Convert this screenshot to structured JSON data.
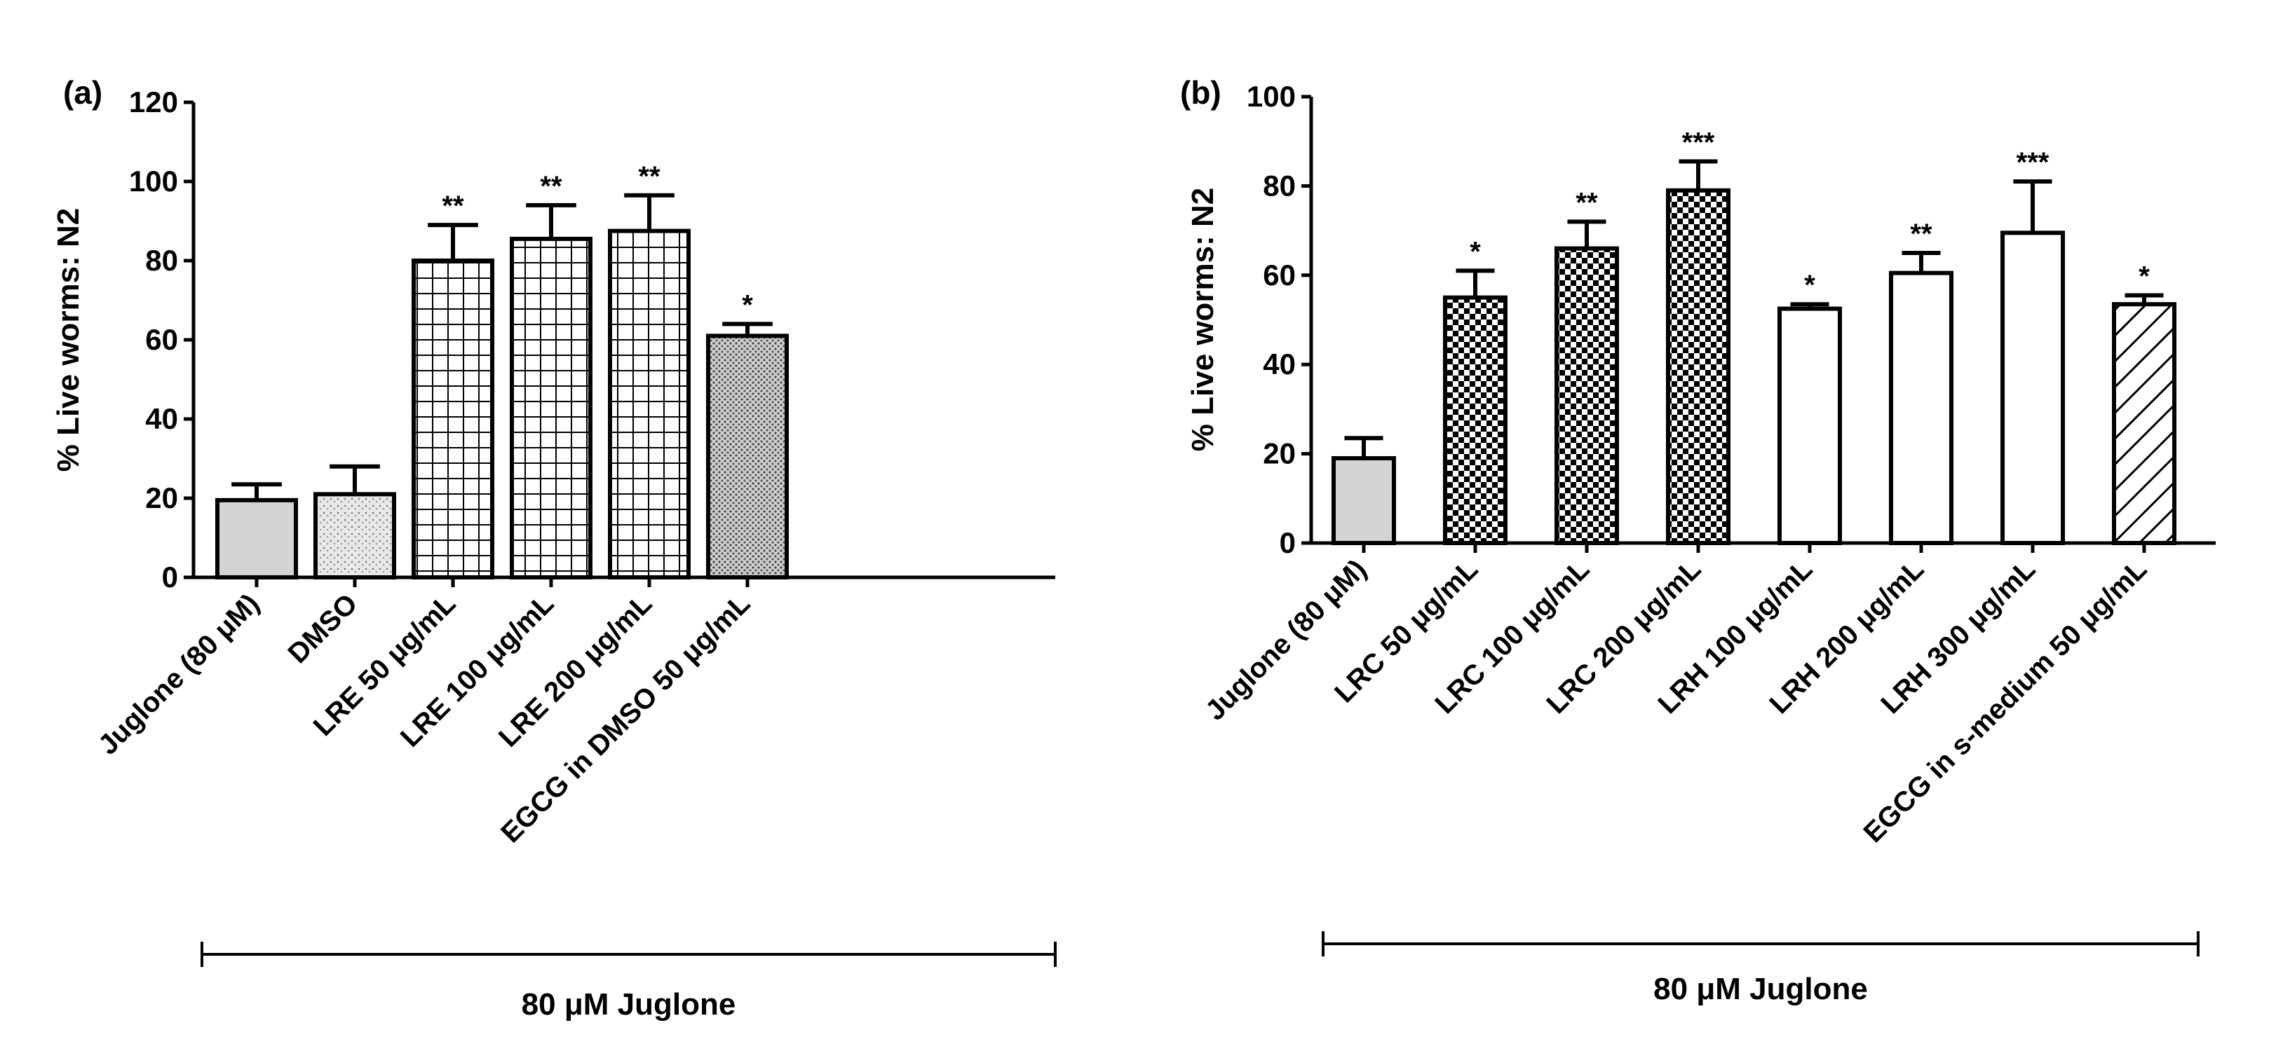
{
  "chart_data": [
    {
      "panel": "(a)",
      "type": "bar",
      "ylabel": "% Live worms: N2",
      "ylim": [
        0,
        120
      ],
      "yticks": [
        0,
        20,
        40,
        60,
        80,
        100,
        120
      ],
      "categories": [
        "Juglone (80 μM)",
        "DMSO",
        "LRE 50 μg/mL",
        "LRE 100 μg/mL",
        "LRE 200 μg/mL",
        "EGCG in DMSO 50 μg/mL"
      ],
      "values": [
        19.5,
        21,
        80,
        85.5,
        87.5,
        61
      ],
      "errors": [
        4,
        7,
        9,
        8.5,
        9,
        3
      ],
      "significance": [
        "",
        "",
        "**",
        "**",
        "**",
        "*"
      ],
      "fills": [
        "solid-gray",
        "speckle",
        "grid",
        "grid",
        "grid",
        "dots"
      ],
      "group_label": "80 μM Juglone"
    },
    {
      "panel": "(b)",
      "type": "bar",
      "ylabel": "% Live worms: N2",
      "ylim": [
        0,
        100
      ],
      "yticks": [
        0,
        20,
        40,
        60,
        80,
        100
      ],
      "categories": [
        "Juglone (80 μM)",
        "LRC 50 μg/mL",
        "LRC 100 μg/mL",
        "LRC 200 μg/mL",
        "LRH 100 μg/mL",
        "LRH 200 μg/mL",
        "LRH 300 μg/mL",
        "EGCG in s-medium 50 μg/mL"
      ],
      "values": [
        19,
        55,
        66,
        79,
        52.5,
        60.5,
        69.5,
        53.5
      ],
      "errors": [
        4.5,
        6,
        6,
        6.5,
        1,
        4.5,
        11.5,
        2
      ],
      "significance": [
        "",
        "*",
        "**",
        "***",
        "*",
        "**",
        "***",
        "*"
      ],
      "fills": [
        "solid-gray",
        "checker",
        "checker",
        "checker",
        "white",
        "white",
        "white",
        "hatch"
      ],
      "group_label": "80 μM Juglone"
    }
  ]
}
